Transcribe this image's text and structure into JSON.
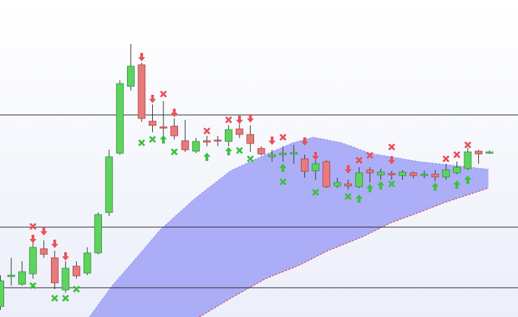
{
  "chart_data": {
    "type": "candlestick",
    "ylim": [
      0,
      455
    ],
    "hlines": [
      290,
      129,
      42
    ],
    "open": [
      15,
      58,
      47,
      62,
      98,
      85,
      39,
      73,
      63,
      92,
      150,
      235,
      331,
      362,
      281,
      273,
      274,
      253,
      238,
      253,
      254,
      252,
      270,
      262,
      242,
      230,
      233,
      234,
      227,
      210,
      223,
      188,
      191,
      187,
      211,
      204,
      206,
      203,
      207,
      203,
      205,
      201,
      207,
      213,
      238,
      235
    ],
    "high": [
      60,
      85,
      80,
      110,
      110,
      95,
      80,
      80,
      100,
      150,
      240,
      340,
      392,
      365,
      305,
      310,
      285,
      283,
      257,
      260,
      260,
      275,
      277,
      275,
      245,
      240,
      245,
      247,
      233,
      225,
      225,
      200,
      197,
      215,
      215,
      213,
      210,
      211,
      209,
      210,
      211,
      220,
      223,
      243,
      240,
      239
    ],
    "low": [
      10,
      45,
      45,
      55,
      85,
      40,
      35,
      55,
      60,
      90,
      145,
      233,
      325,
      280,
      265,
      260,
      255,
      237,
      235,
      245,
      245,
      245,
      257,
      237,
      232,
      223,
      223,
      220,
      200,
      197,
      185,
      185,
      183,
      185,
      193,
      197,
      197,
      197,
      199,
      199,
      195,
      197,
      205,
      211,
      220,
      234
    ],
    "close": [
      52,
      60,
      65,
      100,
      90,
      49,
      70,
      59,
      92,
      147,
      230,
      335,
      360,
      285,
      275,
      271,
      260,
      240,
      252,
      251,
      253,
      269,
      262,
      249,
      234,
      233,
      235,
      236,
      209,
      220,
      187,
      193,
      188,
      207,
      207,
      208,
      204,
      208,
      203,
      205,
      201,
      211,
      215,
      237,
      234,
      237
    ],
    "up_color": "#5ed35e",
    "down_color": "#e77b7b",
    "band_upper": {
      "x": [
        8.2,
        10.3,
        12.8,
        14.7,
        17.9,
        21.2,
        24.4,
        26.9,
        28.8,
        31.4,
        34,
        38.5,
        44.9
      ],
      "values": [
        0,
        45,
        90,
        125,
        170,
        210,
        233,
        250,
        258,
        250,
        235,
        223,
        212
      ]
    },
    "band_lower": {
      "x": [
        18.3,
        21.2,
        24.4,
        27.6,
        30.1,
        33.3,
        35.9,
        38.5,
        41,
        44.9
      ],
      "values": [
        0,
        27,
        55,
        75,
        95,
        115,
        135,
        150,
        165,
        185
      ]
    },
    "band_color": "#9a9cf5",
    "sell_cross": {
      "index": [
        3,
        15,
        19,
        21,
        26,
        33,
        34,
        36,
        41,
        42,
        43
      ],
      "values": [
        130,
        320,
        267,
        283,
        258,
        225,
        232,
        244,
        227,
        233,
        247
      ],
      "color": "#e8505a"
    },
    "sell_arrow": {
      "index": [
        3,
        4,
        5,
        6,
        13,
        14,
        16,
        22,
        23,
        25,
        28,
        29,
        32,
        36
      ],
      "values": [
        112,
        123,
        105,
        87,
        373,
        313,
        293,
        283,
        285,
        253,
        252,
        231,
        212,
        225
      ],
      "color": "#e8505a"
    },
    "buy_arrow": {
      "index": [
        15,
        19,
        21,
        26,
        33,
        34,
        35,
        40,
        42,
        43
      ],
      "values": [
        255,
        230,
        238,
        214,
        170,
        185,
        189,
        187,
        190,
        197
      ],
      "color": "#3cc03c"
    },
    "buy_cross": {
      "index": [
        3,
        5,
        6,
        7,
        13,
        14,
        16,
        22,
        23,
        26,
        29,
        32,
        36
      ],
      "values": [
        45,
        27,
        27,
        40,
        250,
        255,
        237,
        239,
        227,
        194,
        179,
        173,
        191
      ],
      "color": "#3cc03c"
    }
  }
}
